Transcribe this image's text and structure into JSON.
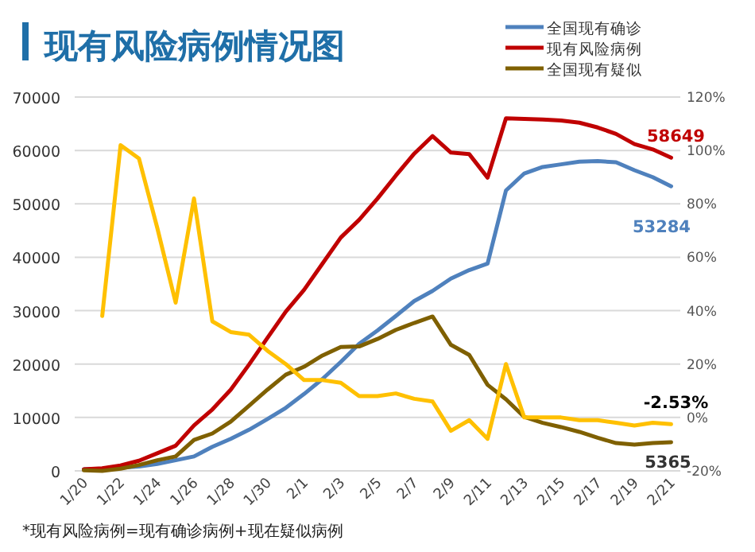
{
  "chart_data": {
    "type": "line",
    "title": "现有风险病例情况图",
    "annotations": [
      "*现有风险病例=现有确诊病例+现在疑似病例"
    ],
    "categories": [
      "1/20",
      null,
      "1/22",
      null,
      "1/24",
      null,
      "1/26",
      null,
      "1/28",
      null,
      "1/30",
      null,
      "2/1",
      null,
      "2/3",
      null,
      "2/5",
      null,
      "2/7",
      null,
      "2/9",
      null,
      "2/11",
      null,
      "2/13",
      null,
      "2/15",
      null,
      "2/17",
      null,
      "2/19",
      null,
      "2/21"
    ],
    "series": [
      {
        "name": "全国现有确诊",
        "color": "#4f81bd",
        "values": [
          300,
          400,
          600,
          800,
          1300,
          2000,
          2700,
          4500,
          6000,
          7700,
          9700,
          11800,
          14400,
          17200,
          20400,
          23800,
          26300,
          29000,
          31800,
          33700,
          36000,
          37600,
          38800,
          52500,
          55700,
          56900,
          57400,
          57900,
          58000,
          57800,
          56300,
          55000,
          53284
        ],
        "value_labels": [
          null,
          null,
          null,
          null,
          null,
          null,
          null,
          null,
          null,
          null,
          null,
          null,
          null,
          null,
          null,
          null,
          null,
          null,
          null,
          null,
          null,
          null,
          null,
          null,
          null,
          null,
          null,
          null,
          null,
          null,
          null,
          null,
          "53284"
        ]
      },
      {
        "name": "现有风险病例",
        "color": "#c00000",
        "values": [
          300,
          500,
          1000,
          1900,
          3300,
          4700,
          8500,
          11500,
          15200,
          19900,
          24900,
          29800,
          33900,
          38800,
          43700,
          47000,
          51000,
          55300,
          59400,
          62700,
          59600,
          59300,
          54900,
          66000,
          65900,
          65800,
          65600,
          65200,
          64300,
          63100,
          61200,
          60200,
          58649
        ],
        "value_labels": [
          null,
          null,
          null,
          null,
          null,
          null,
          null,
          null,
          null,
          null,
          null,
          null,
          null,
          null,
          null,
          null,
          null,
          null,
          null,
          null,
          null,
          null,
          null,
          null,
          null,
          null,
          null,
          null,
          null,
          null,
          null,
          null,
          "58649"
        ]
      },
      {
        "name": "全国现有疑似",
        "color": "#7f6000",
        "values": [
          100,
          0,
          400,
          1100,
          2000,
          2700,
          5800,
          7000,
          9200,
          12200,
          15200,
          18000,
          19500,
          21600,
          23200,
          23300,
          24700,
          26400,
          27700,
          28900,
          23600,
          21700,
          16100,
          13400,
          10100,
          9000,
          8200,
          7300,
          6200,
          5200,
          4900,
          5200,
          5365
        ],
        "value_labels": [
          null,
          null,
          null,
          null,
          null,
          null,
          null,
          null,
          null,
          null,
          null,
          null,
          null,
          null,
          null,
          null,
          null,
          null,
          null,
          null,
          null,
          null,
          null,
          null,
          null,
          null,
          null,
          null,
          null,
          null,
          null,
          null,
          "5365"
        ]
      },
      {
        "color": "#ffc000",
        "axis": "y2",
        "values": [
          null,
          38,
          102,
          97,
          71,
          43,
          82,
          36,
          32,
          31,
          25,
          20,
          14,
          14,
          13,
          8,
          8,
          9,
          7,
          6,
          -5,
          -1,
          -8,
          20,
          0,
          0,
          0,
          -1,
          -1,
          -2,
          -3,
          -2,
          -2.53
        ],
        "value_labels": [
          null,
          null,
          null,
          null,
          null,
          null,
          null,
          null,
          null,
          null,
          null,
          null,
          null,
          null,
          null,
          null,
          null,
          null,
          null,
          null,
          null,
          null,
          null,
          null,
          null,
          null,
          null,
          null,
          null,
          null,
          null,
          null,
          "-2.53%"
        ]
      }
    ],
    "ylim": [
      0,
      70000
    ],
    "yticks": [
      0,
      10000,
      20000,
      30000,
      40000,
      50000,
      60000,
      70000
    ],
    "y2lim": [
      -20,
      120
    ],
    "y2ticks": [
      {
        "value": -20,
        "label": "-20%"
      },
      {
        "value": 0,
        "label": "0%"
      },
      {
        "value": 20,
        "label": "20%"
      },
      {
        "value": 40,
        "label": "40%"
      },
      {
        "value": 60,
        "label": "60%"
      },
      {
        "value": 80,
        "label": "80%"
      },
      {
        "value": 100,
        "label": "100%"
      },
      {
        "value": 120,
        "label": "120%"
      }
    ],
    "grid": "y",
    "legend": "top right"
  }
}
